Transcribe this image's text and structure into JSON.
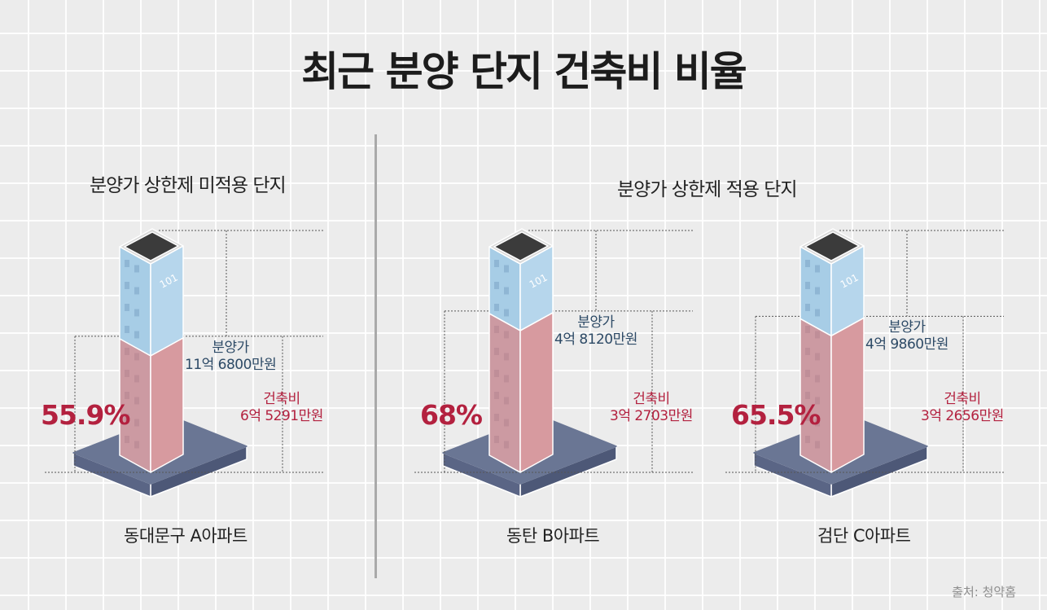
{
  "title": "최근 분양 단지 건축비 비율",
  "groups": {
    "left": "분양가 상한제 미적용 단지",
    "right": "분양가 상한제 적용 단지"
  },
  "source": "출처: 청약홈",
  "building_label": "101",
  "colors": {
    "price_block": "#b6d6ec",
    "cost_block": "#d79a9f",
    "base": "#6a7694",
    "accent": "#b3213f",
    "price_text": "#2d4a66"
  },
  "chart_data": {
    "type": "bar",
    "categories": [
      "동대문구 A아파트",
      "동탄 B아파트",
      "검단 C아파트"
    ],
    "series": [
      {
        "name": "분양가",
        "values": [
          11.68,
          4.812,
          4.986
        ],
        "labels": [
          "분양가\n11억 6800만원",
          "분양가\n4억 8120만원",
          "분양가\n4억 9860만원"
        ]
      },
      {
        "name": "건축비",
        "values": [
          6.5291,
          3.2703,
          3.2656
        ],
        "labels": [
          "건축비\n6억 5291만원",
          "건축비\n3억 2703만원",
          "건축비\n3억 2656만원"
        ]
      }
    ],
    "ratios": [
      55.9,
      68,
      65.5
    ],
    "ratio_labels": [
      "55.9%",
      "68%",
      "65.5%"
    ],
    "groups": [
      "분양가 상한제 미적용 단지",
      "분양가 상한제 적용 단지",
      "분양가 상한제 적용 단지"
    ]
  }
}
